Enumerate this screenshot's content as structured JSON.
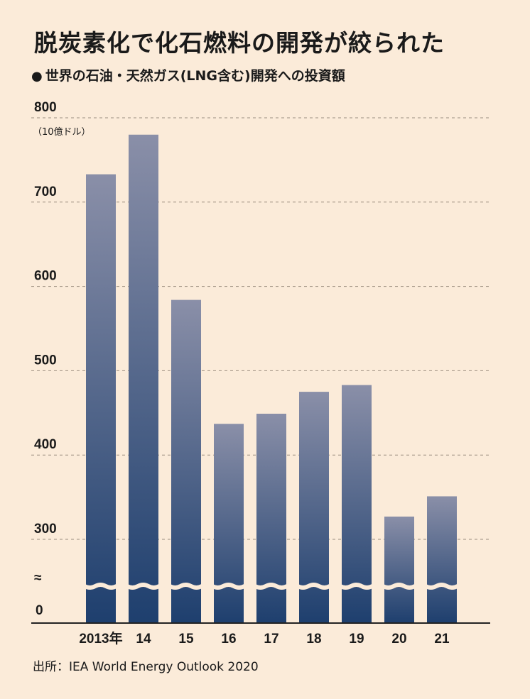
{
  "header": {
    "title": "脱炭素化で化石燃料の開発が絞られた",
    "bullet": "●",
    "subtitle": "世界の石油・天然ガス(LNG含む)開発への投資額"
  },
  "source": "出所：IEA World Energy Outlook 2020",
  "chart_data": {
    "type": "bar",
    "title": "脱炭素化で化石燃料の開発が絞られた",
    "subtitle": "世界の石油・天然ガス(LNG含む)開発への投資額",
    "unit_label": "（10億ドル）",
    "categories": [
      "2013年",
      "14",
      "15",
      "16",
      "17",
      "18",
      "19",
      "20",
      "21"
    ],
    "values": [
      733,
      780,
      584,
      437,
      449,
      475,
      483,
      327,
      351
    ],
    "yticks": [
      "800",
      "700",
      "600",
      "500",
      "400",
      "300"
    ],
    "y_break_symbol": "≈",
    "y_zero_label": "0",
    "ylim": [
      0,
      800
    ],
    "y_axis_break": [
      0,
      250
    ],
    "grid": "dashed horizontal",
    "colors": {
      "background": "#fbebd9",
      "bar_top": "#8a8fa8",
      "bar_bottom": "#1e3f6e",
      "grid": "#9a8c7e"
    }
  }
}
